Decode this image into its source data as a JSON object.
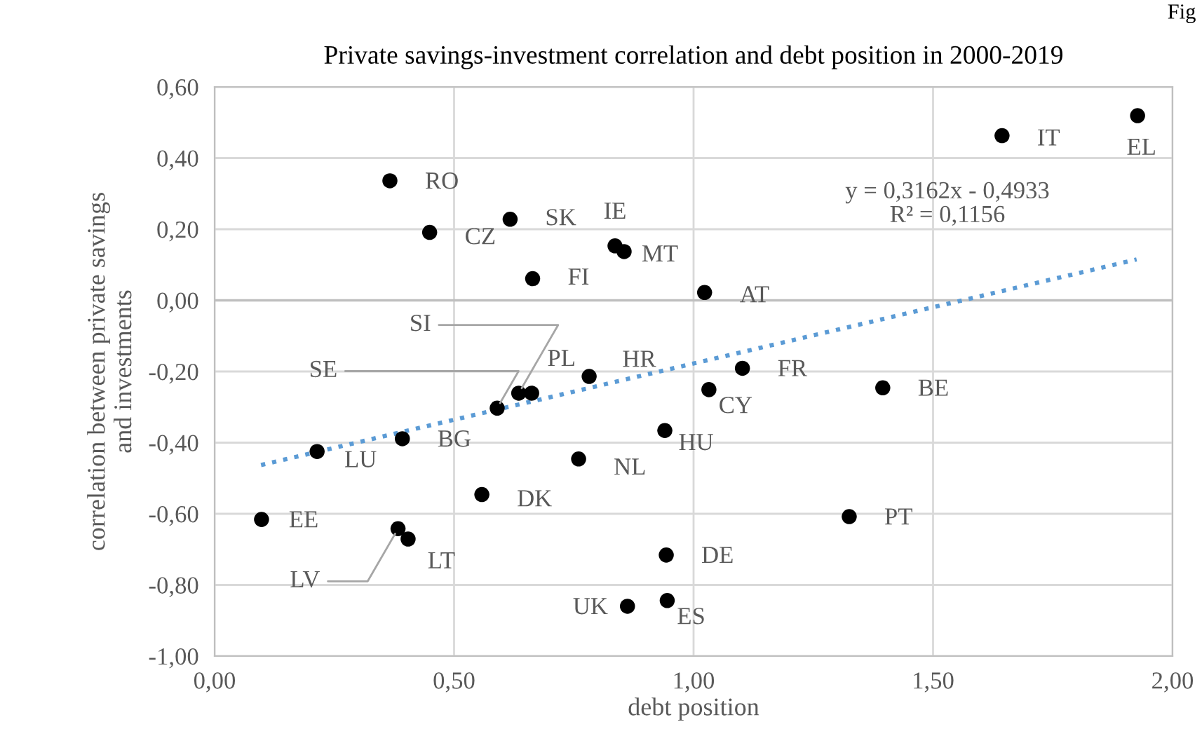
{
  "chart_data": {
    "type": "scatter",
    "title": "Private savings-investment correlation and debt position in 2000-2019",
    "xlabel": "debt position",
    "ylabel": "correlation between private savings\nand investments",
    "xlim": [
      0,
      2
    ],
    "ylim": [
      -1,
      0.6
    ],
    "xticks": [
      {
        "value": 0,
        "label": "0,00"
      },
      {
        "value": 0.5,
        "label": "0,50"
      },
      {
        "value": 1,
        "label": "1,00"
      },
      {
        "value": 1.5,
        "label": "1,50"
      },
      {
        "value": 2,
        "label": "2,00"
      }
    ],
    "yticks": [
      {
        "value": -1,
        "label": "-1,00"
      },
      {
        "value": -0.8,
        "label": "-0,80"
      },
      {
        "value": -0.6,
        "label": "-0,60"
      },
      {
        "value": -0.4,
        "label": "-0,40"
      },
      {
        "value": -0.2,
        "label": "-0,20"
      },
      {
        "value": 0,
        "label": "0,00"
      },
      {
        "value": 0.2,
        "label": "0,20"
      },
      {
        "value": 0.4,
        "label": "0,40"
      },
      {
        "value": 0.6,
        "label": "0,60"
      }
    ],
    "grid": true,
    "legend": false,
    "series": [
      {
        "color": "#000000",
        "marker": "circle",
        "x": [
          0.098,
          0.214,
          0.366,
          0.449,
          0.617,
          0.836,
          0.855,
          0.664,
          0.635,
          0.662,
          0.782,
          0.59,
          0.392,
          0.76,
          0.558,
          0.383,
          0.404,
          0.94,
          1.023,
          1.102,
          1.032,
          1.395,
          1.325,
          0.943,
          0.945,
          0.862,
          1.644,
          1.927
        ],
        "values": [
          -0.616,
          -0.425,
          0.336,
          0.191,
          0.228,
          0.153,
          0.137,
          0.061,
          -0.261,
          -0.261,
          -0.214,
          -0.303,
          -0.389,
          -0.446,
          -0.546,
          -0.642,
          -0.671,
          -0.366,
          0.022,
          -0.191,
          -0.251,
          -0.246,
          -0.608,
          -0.716,
          -0.844,
          -0.86,
          0.463,
          0.519
        ],
        "value_labels": [
          "EE",
          "LU",
          "RO",
          "CZ",
          "SK",
          "IE",
          "MT",
          "FI",
          "SI",
          "PL",
          "HR",
          "SE",
          "BG",
          "NL",
          "DK",
          "LV",
          "LT",
          "HU",
          "AT",
          "FR",
          "CY",
          "BE",
          "PT",
          "DE",
          "ES",
          "UK",
          "IT",
          "EL"
        ]
      },
      {
        "type": "line",
        "color": "#5b9bd5",
        "line_style": "dotted",
        "marker": "none",
        "x": [
          0.097,
          1.925
        ],
        "values": [
          -0.463,
          0.115
        ]
      }
    ],
    "annotations": [
      "y = 0,3162x - 0,4933\nR² = 0,1156",
      "Fig"
    ]
  }
}
